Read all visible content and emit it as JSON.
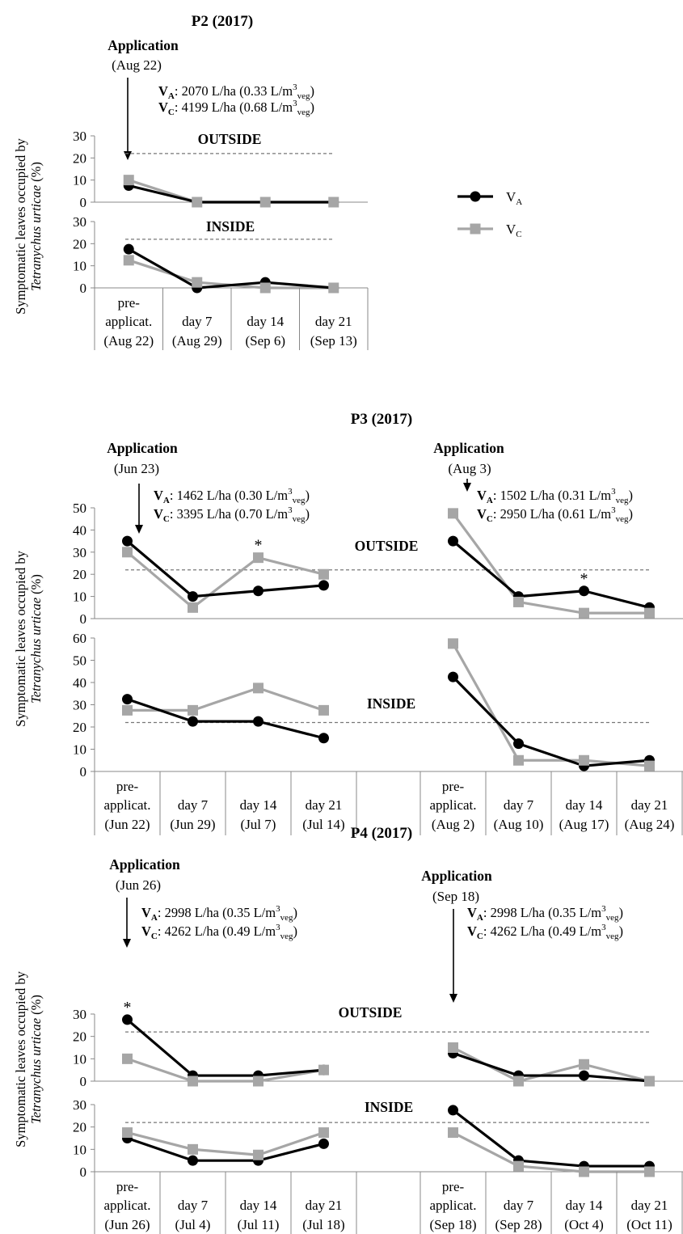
{
  "legend": {
    "va_sub": "A",
    "vc_sub": "C",
    "v": "V"
  },
  "colors": {
    "va": "#000000",
    "vc": "#a6a6a6",
    "threshold": "#777777",
    "axis": "#888888"
  },
  "chart_data": [
    {
      "type": "line",
      "title": "P2 (2017)",
      "ylabel_line1": "Symptomatic leaves occupied by",
      "ylabel_line2_italic": "Tetranychus urticae",
      "ylabel_line2_rest": " (%)",
      "series_names": [
        "VA",
        "VC"
      ],
      "threshold": 22,
      "applications": [
        {
          "label": "Application",
          "date": "(Aug 22)",
          "va_rate": ": 2070 L/ha (0.33 L/m",
          "va_tail": ")",
          "vc_rate": ": 4199 L/ha (0.68 L/m",
          "vc_tail": ")"
        }
      ],
      "panels": [
        {
          "name": "OUTSIDE",
          "ylim": [
            0,
            30
          ],
          "yticks": [
            "0",
            "10",
            "20",
            "30"
          ],
          "groups": [
            {
              "va": [
                7.5,
                0,
                0,
                0
              ],
              "vc": [
                10,
                0,
                0,
                0
              ],
              "stars": []
            }
          ]
        },
        {
          "name": "INSIDE",
          "ylim": [
            0,
            30
          ],
          "yticks": [
            "0",
            "10",
            "20",
            "30"
          ],
          "groups": [
            {
              "va": [
                17.5,
                0,
                2.5,
                0
              ],
              "vc": [
                12.5,
                2.5,
                0,
                0
              ],
              "stars": []
            }
          ]
        }
      ],
      "categories": [
        [
          {
            "line1": "pre-",
            "line2": "applicat.",
            "line3": "(Aug 22)"
          },
          {
            "line1": "",
            "line2": "day 7",
            "line3": "(Aug 29)"
          },
          {
            "line1": "",
            "line2": "day 14",
            "line3": "(Sep 6)"
          },
          {
            "line1": "",
            "line2": "day 21",
            "line3": "(Sep 13)"
          }
        ]
      ]
    },
    {
      "type": "line",
      "title": "P3 (2017)",
      "ylabel_line1": "Symptomatic leaves occupied by",
      "ylabel_line2_italic": "Tetranychus urticae",
      "ylabel_line2_rest": " (%)",
      "series_names": [
        "VA",
        "VC"
      ],
      "threshold": 22,
      "applications": [
        {
          "label": "Application",
          "date": "(Jun 23)",
          "va_rate": ": 1462 L/ha (0.30 L/m",
          "va_tail": ")",
          "vc_rate": ": 3395 L/ha (0.70 L/m",
          "vc_tail": ")"
        },
        {
          "label": "Application",
          "date": "(Aug 3)",
          "va_rate": ": 1502 L/ha (0.31 L/m",
          "va_tail": ")",
          "vc_rate": ": 2950 L/ha (0.61 L/m",
          "vc_tail": ")"
        }
      ],
      "panels": [
        {
          "name": "OUTSIDE",
          "ylim": [
            0,
            50
          ],
          "yticks": [
            "0",
            "10",
            "20",
            "30",
            "40",
            "50"
          ],
          "groups": [
            {
              "va": [
                35,
                10,
                12.5,
                15
              ],
              "vc": [
                30,
                5,
                27.5,
                20
              ],
              "stars": [
                2
              ]
            },
            {
              "va": [
                35,
                10,
                12.5,
                5
              ],
              "vc": [
                47.5,
                7.5,
                2.5,
                2.5
              ],
              "stars": [
                2
              ]
            }
          ]
        },
        {
          "name": "INSIDE",
          "ylim": [
            0,
            60
          ],
          "yticks": [
            "0",
            "10",
            "20",
            "30",
            "40",
            "50",
            "60"
          ],
          "groups": [
            {
              "va": [
                32.5,
                22.5,
                22.5,
                15
              ],
              "vc": [
                27.5,
                27.5,
                37.5,
                27.5
              ],
              "stars": []
            },
            {
              "va": [
                42.5,
                12.5,
                2.5,
                5
              ],
              "vc": [
                57.5,
                5,
                5,
                2.5
              ],
              "stars": []
            }
          ]
        }
      ],
      "categories": [
        [
          {
            "line1": "pre-",
            "line2": "applicat.",
            "line3": "(Jun 22)"
          },
          {
            "line1": "",
            "line2": "day 7",
            "line3": "(Jun 29)"
          },
          {
            "line1": "",
            "line2": "day 14",
            "line3": "(Jul 7)"
          },
          {
            "line1": "",
            "line2": "day 21",
            "line3": "(Jul 14)"
          }
        ],
        [
          {
            "line1": "pre-",
            "line2": "applicat.",
            "line3": "(Aug 2)"
          },
          {
            "line1": "",
            "line2": "day 7",
            "line3": "(Aug 10)"
          },
          {
            "line1": "",
            "line2": "day 14",
            "line3": "(Aug 17)"
          },
          {
            "line1": "",
            "line2": "day 21",
            "line3": "(Aug 24)"
          }
        ]
      ]
    },
    {
      "type": "line",
      "title": "P4 (2017)",
      "ylabel_line1": "Symptomatic leaves occupied by",
      "ylabel_line2_italic": "Tetranychus urticae",
      "ylabel_line2_rest": " (%)",
      "series_names": [
        "VA",
        "VC"
      ],
      "threshold": 22,
      "applications": [
        {
          "label": "Application",
          "date": "(Jun 26)",
          "va_rate": ": 2998 L/ha (0.35 L/m",
          "va_tail": ")",
          "vc_rate": ": 4262 L/ha (0.49 L/m",
          "vc_tail": ")"
        },
        {
          "label": "Application",
          "date": "(Sep 18)",
          "va_rate": ": 2998 L/ha (0.35 L/m",
          "va_tail": ")",
          "vc_rate": ": 4262 L/ha (0.49 L/m",
          "vc_tail": ")"
        }
      ],
      "panels": [
        {
          "name": "OUTSIDE",
          "ylim": [
            0,
            30
          ],
          "yticks": [
            "0",
            "10",
            "20",
            "30"
          ],
          "groups": [
            {
              "va": [
                27.5,
                2.5,
                2.5,
                5
              ],
              "vc": [
                10,
                0,
                0,
                5
              ],
              "stars": [
                0
              ]
            },
            {
              "va": [
                12.5,
                2.5,
                2.5,
                0
              ],
              "vc": [
                15,
                0,
                7.5,
                0
              ],
              "stars": []
            }
          ]
        },
        {
          "name": "INSIDE",
          "ylim": [
            0,
            30
          ],
          "yticks": [
            "0",
            "10",
            "20",
            "30"
          ],
          "groups": [
            {
              "va": [
                15,
                5,
                5,
                12.5
              ],
              "vc": [
                17.5,
                10,
                7.5,
                17.5
              ],
              "stars": []
            },
            {
              "va": [
                27.5,
                5,
                2.5,
                2.5
              ],
              "vc": [
                17.5,
                2.5,
                0,
                0
              ],
              "stars": []
            }
          ]
        }
      ],
      "categories": [
        [
          {
            "line1": "pre-",
            "line2": "applicat.",
            "line3": "(Jun 26)"
          },
          {
            "line1": "",
            "line2": "day 7",
            "line3": "(Jul 4)"
          },
          {
            "line1": "",
            "line2": "day 14",
            "line3": "(Jul 11)"
          },
          {
            "line1": "",
            "line2": "day 21",
            "line3": "(Jul 18)"
          }
        ],
        [
          {
            "line1": "pre-",
            "line2": "applicat.",
            "line3": "(Sep 18)"
          },
          {
            "line1": "",
            "line2": "day 7",
            "line3": "(Sep 28)"
          },
          {
            "line1": "",
            "line2": "day 14",
            "line3": "(Oct 4)"
          },
          {
            "line1": "",
            "line2": "day 21",
            "line3": "(Oct 11)"
          }
        ]
      ]
    }
  ],
  "texts": {
    "star": "*",
    "sub_veg": "veg",
    "sup3": "3"
  }
}
